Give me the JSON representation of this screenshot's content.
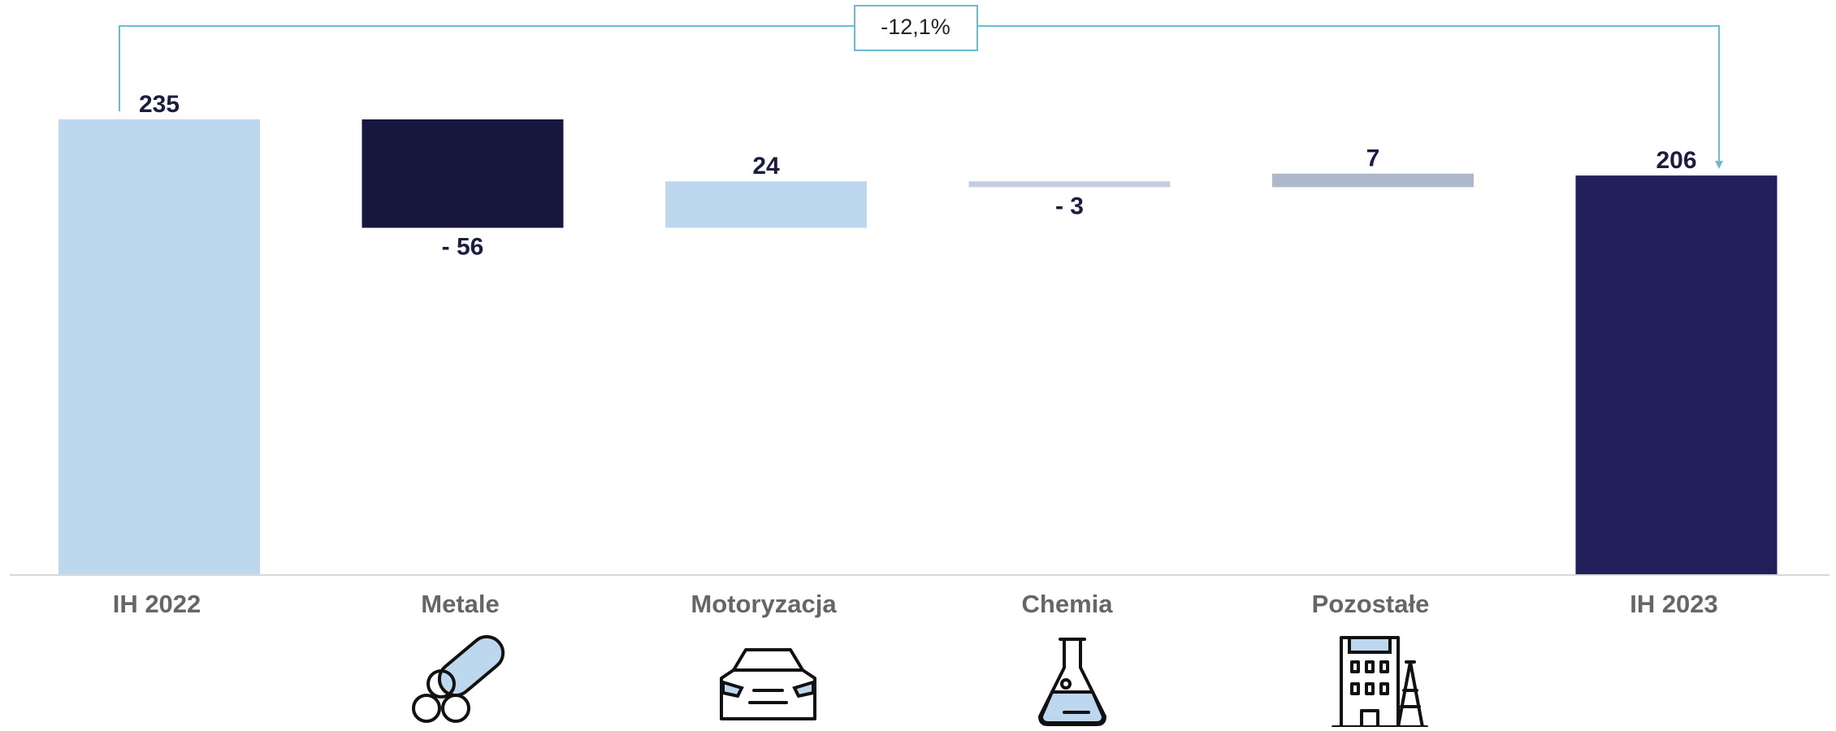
{
  "chart_data": {
    "type": "waterfall",
    "annotation": "-12,1%",
    "categories": [
      "IH 2022",
      "Metale",
      "Motoryzacja",
      "Chemia",
      "Pozostałe",
      "IH 2023"
    ],
    "values": [
      235,
      -56,
      24,
      -3,
      7,
      206
    ],
    "value_labels": [
      "235",
      "- 56",
      "24",
      "- 3",
      "7",
      "206"
    ],
    "colors": [
      "#bdd7ee",
      "#17173d",
      "#bdd7ee",
      "#c3cfdf",
      "#adb9ca",
      "#22205a"
    ]
  }
}
